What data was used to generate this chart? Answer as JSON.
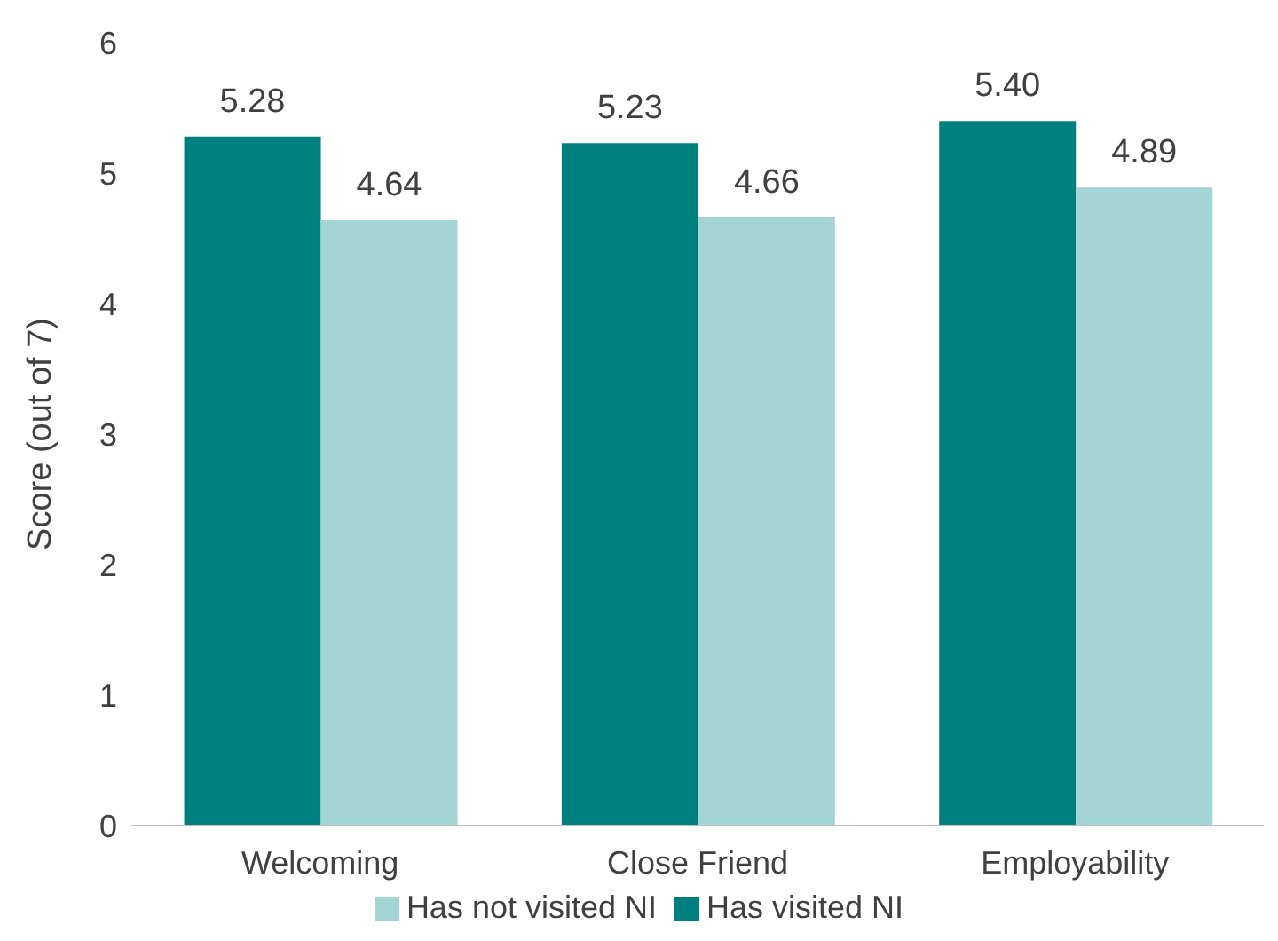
{
  "chart_data": {
    "type": "bar",
    "ylabel": "Score (out of 7)",
    "categories": [
      "Welcoming",
      "Close Friend",
      "Employability"
    ],
    "series": [
      {
        "name": "Has visited NI",
        "color": "#007f7f",
        "values": [
          5.28,
          5.23,
          5.4
        ],
        "value_labels": [
          "5.28",
          "5.23",
          "5.40"
        ]
      },
      {
        "name": "Has not visited NI",
        "color": "#a3d5d5",
        "values": [
          4.64,
          4.66,
          4.89
        ],
        "value_labels": [
          "4.64",
          "4.66",
          "4.89"
        ]
      }
    ],
    "ylim": [
      0,
      6
    ],
    "yticks": [
      0,
      1,
      2,
      3,
      4,
      5,
      6
    ],
    "grid": false,
    "legend": "bottom"
  }
}
